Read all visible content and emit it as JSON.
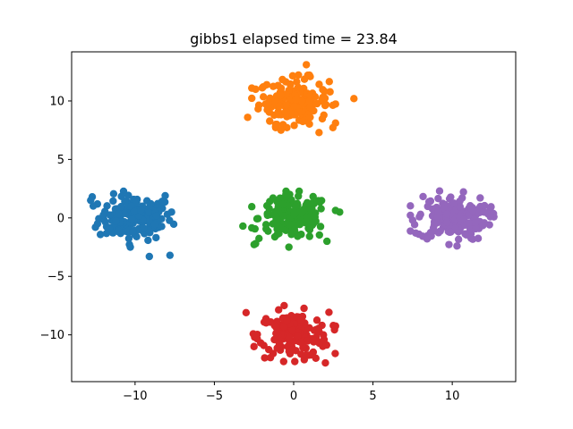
{
  "chart_data": {
    "type": "scatter",
    "title": "gibbs1 elapsed time = 23.84",
    "xlabel": "",
    "ylabel": "",
    "xlim": [
      -14,
      14
    ],
    "ylim": [
      -14,
      14.2
    ],
    "xticks": [
      -10,
      -5,
      0,
      5,
      10
    ],
    "xtick_labels": [
      "−10",
      "−5",
      "0",
      "5",
      "10"
    ],
    "yticks": [
      -10,
      -5,
      0,
      5,
      10
    ],
    "ytick_labels": [
      "−10",
      "−5",
      "0",
      "5",
      "10"
    ],
    "grid": false,
    "legend": "none",
    "series": [
      {
        "color": "#1f77b4",
        "center": [
          -10,
          0
        ],
        "spread": [
          1.15,
          0.95
        ],
        "n": 160,
        "outliers": [
          [
            -12.7,
            1.8
          ],
          [
            -12.8,
            1.5
          ],
          [
            -7.8,
            -3.2
          ],
          [
            -9.1,
            -3.3
          ],
          [
            -10.3,
            -2.5
          ],
          [
            -8.1,
            1.9
          ],
          [
            -7.7,
            0.5
          ]
        ]
      },
      {
        "color": "#ff7f0e",
        "center": [
          0,
          10
        ],
        "spread": [
          1.1,
          0.95
        ],
        "n": 160,
        "outliers": [
          [
            -2.9,
            8.6
          ],
          [
            3.8,
            10.2
          ],
          [
            0.8,
            13.1
          ],
          [
            1.6,
            7.3
          ],
          [
            -0.8,
            7.5
          ],
          [
            -2.4,
            11.0
          ]
        ]
      },
      {
        "color": "#2ca02c",
        "center": [
          0,
          0
        ],
        "spread": [
          1.1,
          0.95
        ],
        "n": 160,
        "outliers": [
          [
            -3.2,
            -0.7
          ],
          [
            2.9,
            0.5
          ],
          [
            -2.4,
            -2.2
          ],
          [
            2.1,
            -2.0
          ],
          [
            -0.3,
            -2.5
          ],
          [
            -1.3,
            1.7
          ]
        ]
      },
      {
        "color": "#d62728",
        "center": [
          0,
          -10
        ],
        "spread": [
          1.1,
          0.95
        ],
        "n": 160,
        "outliers": [
          [
            -3.0,
            -8.1
          ],
          [
            -2.5,
            -11.0
          ],
          [
            2.0,
            -12.4
          ],
          [
            1.4,
            -12.0
          ],
          [
            -0.6,
            -7.5
          ],
          [
            2.5,
            -9.2
          ]
        ]
      },
      {
        "color": "#9467bd",
        "center": [
          10,
          0
        ],
        "spread": [
          1.1,
          0.95
        ],
        "n": 160,
        "outliers": [
          [
            12.4,
            0.1
          ],
          [
            7.5,
            -0.2
          ],
          [
            7.7,
            -1.3
          ],
          [
            9.2,
            2.3
          ],
          [
            10.3,
            -2.4
          ],
          [
            12.0,
            0.5
          ]
        ]
      }
    ]
  }
}
